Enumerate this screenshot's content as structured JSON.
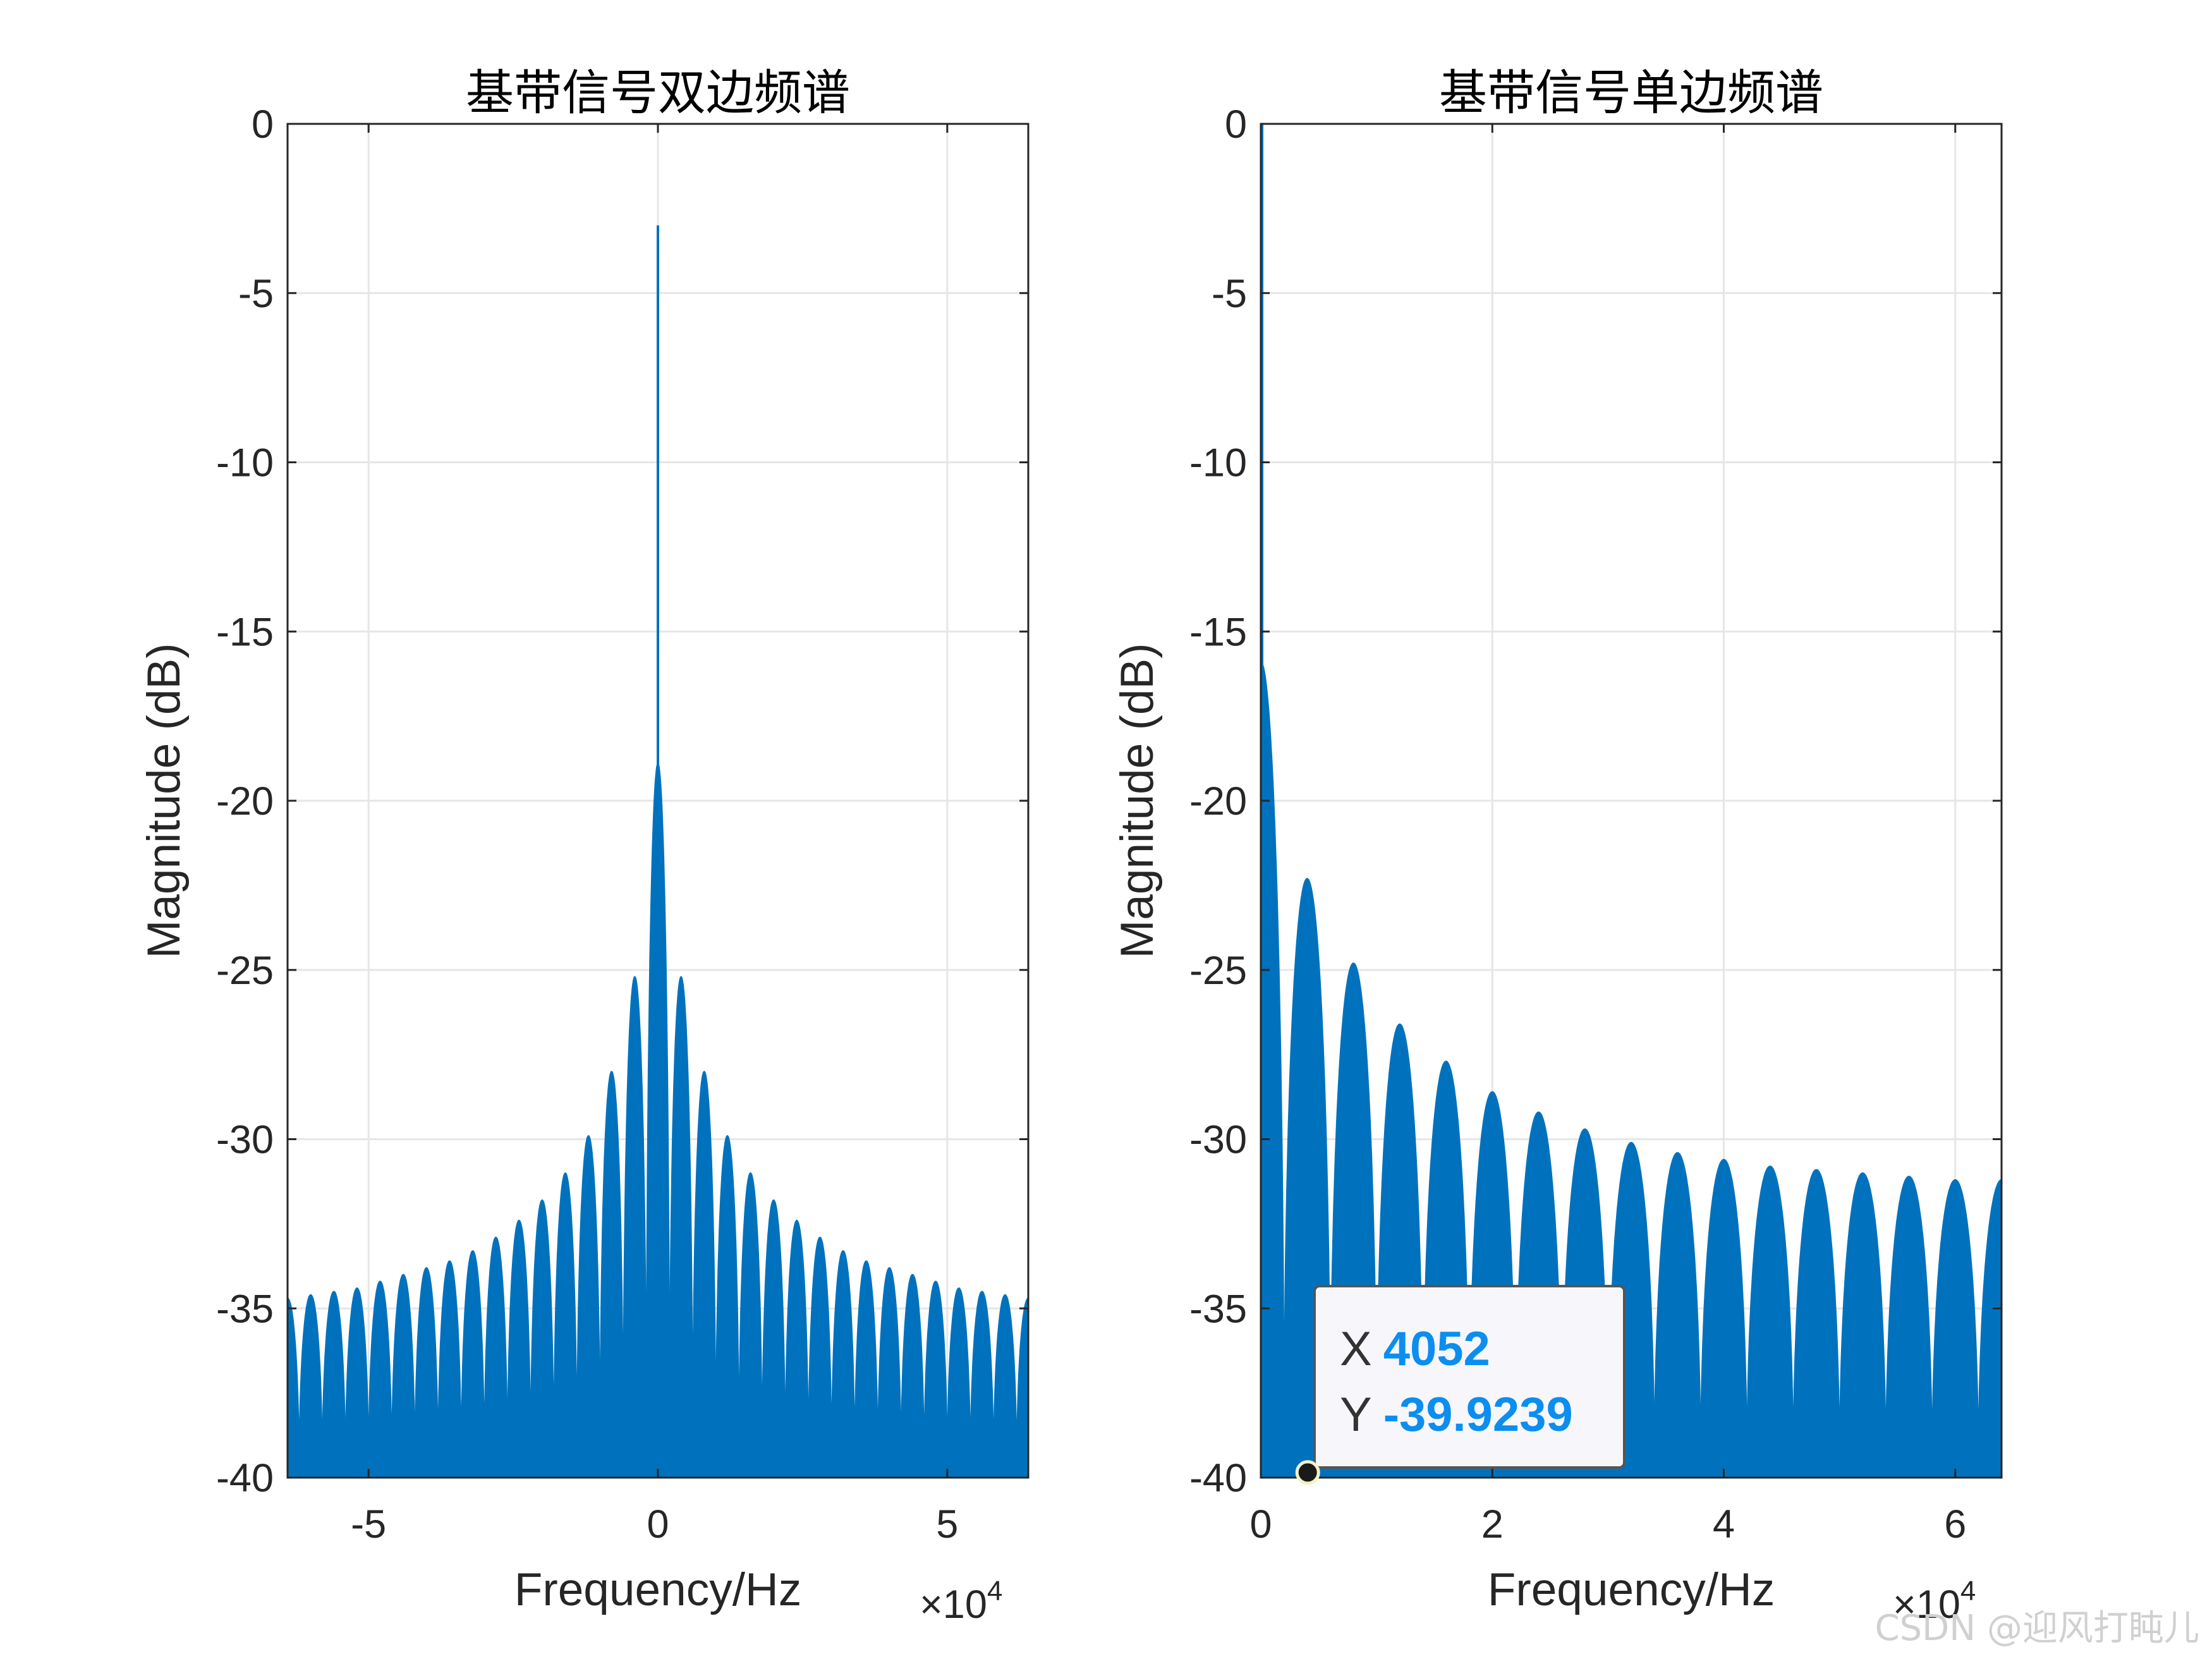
{
  "chart_data": [
    {
      "type": "line",
      "title": "基带信号双边频谱",
      "xlabel": "Frequency/Hz",
      "ylabel": "Magnitude (dB)",
      "x_exponent_label": "×10",
      "x_exponent_power": "4",
      "xlim": [
        -64000,
        64000
      ],
      "ylim": [
        -40,
        0
      ],
      "xticks": [
        -50000,
        0,
        50000
      ],
      "xtick_labels": [
        "-5",
        "0",
        "5"
      ],
      "yticks": [
        0,
        -5,
        -10,
        -15,
        -20,
        -25,
        -30,
        -35,
        -40
      ],
      "ytick_labels": [
        "0",
        "-5",
        "-10",
        "-15",
        "-20",
        "-25",
        "-30",
        "-35",
        "-40"
      ],
      "grid": true,
      "color": "#0072BD",
      "series": [
        {
          "peak_x": 0,
          "peak_y": -3,
          "main_lobe_y": -18.9,
          "main_lobe_half_width": 2000,
          "lobe_spacing": 4000,
          "sidelobe_peaks_y": [
            -25.2,
            -28.0,
            -29.9,
            -31.0,
            -31.8,
            -32.4,
            -32.9,
            -33.3,
            -33.6,
            -33.8,
            -34.0,
            -34.2,
            -34.4,
            -34.5,
            -34.6,
            -34.7
          ]
        }
      ]
    },
    {
      "type": "line",
      "title": "基带信号单边频谱",
      "xlabel": "Frequency/Hz",
      "ylabel": "Magnitude (dB)",
      "x_exponent_label": "×10",
      "x_exponent_power": "4",
      "xlim": [
        0,
        64000
      ],
      "ylim": [
        -40,
        0
      ],
      "xticks": [
        0,
        20000,
        40000,
        60000
      ],
      "xtick_labels": [
        "0",
        "2",
        "4",
        "6"
      ],
      "yticks": [
        0,
        -5,
        -10,
        -15,
        -20,
        -25,
        -30,
        -35,
        -40
      ],
      "ytick_labels": [
        "0",
        "-5",
        "-10",
        "-15",
        "-20",
        "-25",
        "-30",
        "-35",
        "-40"
      ],
      "grid": true,
      "color": "#0072BD",
      "series": [
        {
          "peak_x": 0,
          "peak_y": 0,
          "main_lobe_y": -15.9,
          "main_lobe_half_width": 2000,
          "lobe_spacing": 4000,
          "sidelobe_peaks_y": [
            -22.3,
            -24.8,
            -26.6,
            -27.7,
            -28.6,
            -29.2,
            -29.7,
            -30.1,
            -30.4,
            -30.6,
            -30.8,
            -30.9,
            -31.0,
            -31.1,
            -31.2
          ]
        }
      ],
      "datatip": {
        "x_key": "X",
        "x_value": "4052",
        "y_key": "Y",
        "y_value": "-39.9239",
        "x": 4052,
        "y": -39.9239
      }
    }
  ],
  "watermark": "CSDN @迎风打盹儿"
}
